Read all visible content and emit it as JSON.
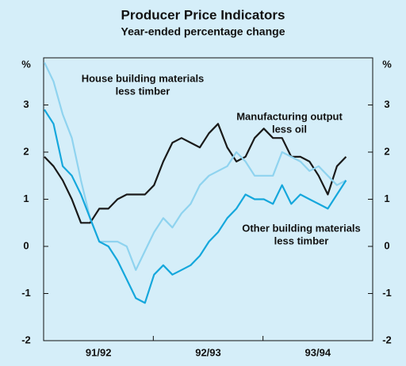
{
  "chart_data": {
    "type": "line",
    "title": "Producer Price Indicators",
    "subtitle": "Year-ended percentage change",
    "x_labels": [
      "91/92",
      "92/93",
      "93/94"
    ],
    "ylim": [
      -2,
      4
    ],
    "yticks": [
      -2,
      -1,
      0,
      1,
      2,
      3,
      {
        "value": 4,
        "label": "%"
      }
    ],
    "series": [
      {
        "name": [
          "Manufacturing output",
          "less oil"
        ],
        "color": "#1a1a1a",
        "values": [
          1.9,
          1.7,
          1.4,
          1.0,
          0.5,
          0.5,
          0.8,
          0.8,
          1.0,
          1.1,
          1.1,
          1.1,
          1.3,
          1.8,
          2.2,
          2.3,
          2.2,
          2.1,
          2.4,
          2.6,
          2.1,
          1.8,
          1.9,
          2.3,
          2.5,
          2.3,
          2.3,
          1.9,
          1.9,
          1.8,
          1.5,
          1.1,
          1.7,
          1.9
        ]
      },
      {
        "name": [
          "House building materials",
          "less timber"
        ],
        "color": "#8fd3ef",
        "values": [
          3.9,
          3.5,
          2.8,
          2.3,
          1.4,
          0.6,
          0.1,
          0.1,
          0.1,
          0.0,
          -0.5,
          -0.1,
          0.3,
          0.6,
          0.4,
          0.7,
          0.9,
          1.3,
          1.5,
          1.6,
          1.7,
          2.0,
          1.8,
          1.5,
          1.5,
          1.5,
          2.0,
          1.9,
          1.8,
          1.6,
          1.7,
          1.5,
          1.3,
          1.4
        ]
      },
      {
        "name": [
          "Other building materials",
          "less timber"
        ],
        "color": "#15a7dc",
        "values": [
          2.9,
          2.6,
          1.7,
          1.5,
          1.1,
          0.6,
          0.1,
          0.0,
          -0.3,
          -0.7,
          -1.1,
          -1.2,
          -0.6,
          -0.4,
          -0.6,
          -0.5,
          -0.4,
          -0.2,
          0.1,
          0.3,
          0.6,
          0.8,
          1.1,
          1.0,
          1.0,
          0.9,
          1.3,
          0.9,
          1.1,
          1.0,
          0.9,
          0.8,
          1.1,
          1.4
        ]
      }
    ]
  }
}
